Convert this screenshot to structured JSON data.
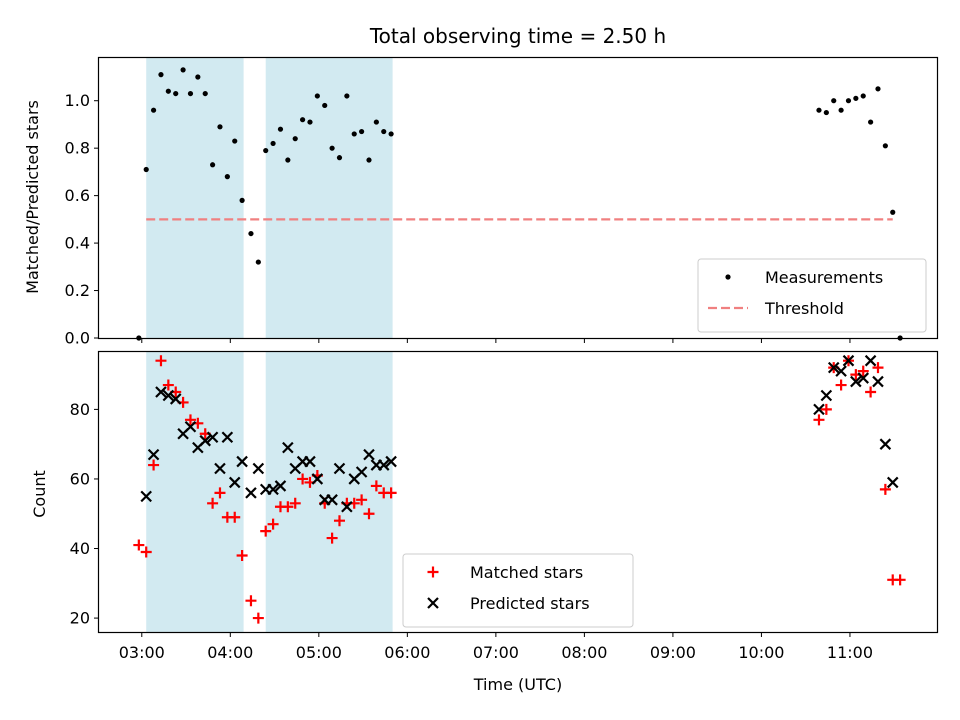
{
  "chart_data": {
    "type": "scatter",
    "title": "Total observing time = 2.50 h",
    "xlabel": "Time (UTC)",
    "x_ticks": [
      "03:00",
      "04:00",
      "05:00",
      "06:00",
      "07:00",
      "08:00",
      "09:00",
      "10:00",
      "11:00"
    ],
    "xlim": [
      "02:31",
      "11:59"
    ],
    "shaded_intervals": [
      [
        "03:03",
        "04:09"
      ],
      [
        "04:24",
        "05:50"
      ]
    ],
    "shade_color": "#add8e6",
    "panels": [
      {
        "ylabel": "Matched/Predicted stars",
        "ylim": [
          0,
          1.18
        ],
        "y_ticks": [
          "0.0",
          "0.2",
          "0.4",
          "0.6",
          "0.8",
          "1.0"
        ],
        "legend_position": "lower-right",
        "series": [
          {
            "name": "Measurements",
            "marker": "dot",
            "color": "#000000",
            "points": [
              [
                "02:58",
                0.0
              ],
              [
                "03:03",
                0.71
              ],
              [
                "03:08",
                0.96
              ],
              [
                "03:13",
                1.11
              ],
              [
                "03:18",
                1.04
              ],
              [
                "03:23",
                1.03
              ],
              [
                "03:28",
                1.13
              ],
              [
                "03:33",
                1.03
              ],
              [
                "03:38",
                1.1
              ],
              [
                "03:43",
                1.03
              ],
              [
                "03:48",
                0.73
              ],
              [
                "03:53",
                0.89
              ],
              [
                "03:58",
                0.68
              ],
              [
                "04:03",
                0.83
              ],
              [
                "04:08",
                0.58
              ],
              [
                "04:14",
                0.44
              ],
              [
                "04:19",
                0.32
              ],
              [
                "04:24",
                0.79
              ],
              [
                "04:29",
                0.82
              ],
              [
                "04:34",
                0.88
              ],
              [
                "04:39",
                0.75
              ],
              [
                "04:44",
                0.84
              ],
              [
                "04:49",
                0.92
              ],
              [
                "04:54",
                0.91
              ],
              [
                "04:59",
                1.02
              ],
              [
                "05:04",
                0.98
              ],
              [
                "05:09",
                0.8
              ],
              [
                "05:14",
                0.76
              ],
              [
                "05:19",
                1.02
              ],
              [
                "05:24",
                0.86
              ],
              [
                "05:29",
                0.87
              ],
              [
                "05:34",
                0.75
              ],
              [
                "05:39",
                0.91
              ],
              [
                "05:44",
                0.87
              ],
              [
                "05:49",
                0.86
              ],
              [
                "10:39",
                0.96
              ],
              [
                "10:44",
                0.95
              ],
              [
                "10:49",
                1.0
              ],
              [
                "10:54",
                0.96
              ],
              [
                "10:59",
                1.0
              ],
              [
                "11:04",
                1.01
              ],
              [
                "11:09",
                1.02
              ],
              [
                "11:14",
                0.91
              ],
              [
                "11:19",
                1.05
              ],
              [
                "11:24",
                0.81
              ],
              [
                "11:29",
                0.53
              ],
              [
                "11:34",
                0.0
              ]
            ]
          },
          {
            "name": "Threshold",
            "marker": "dashed-line",
            "color": "#f08080",
            "x_range": [
              "03:03",
              "11:29"
            ],
            "value": 0.5
          }
        ]
      },
      {
        "ylabel": "Count",
        "ylim": [
          16,
          96.5
        ],
        "y_ticks": [
          "20",
          "40",
          "60",
          "80"
        ],
        "legend_position": "lower-center",
        "series": [
          {
            "name": "Matched stars",
            "marker": "plus",
            "color": "#ff0000",
            "points": [
              [
                "02:58",
                41
              ],
              [
                "03:03",
                39
              ],
              [
                "03:08",
                64
              ],
              [
                "03:13",
                94
              ],
              [
                "03:18",
                87
              ],
              [
                "03:23",
                85
              ],
              [
                "03:28",
                82
              ],
              [
                "03:33",
                77
              ],
              [
                "03:38",
                76
              ],
              [
                "03:43",
                73
              ],
              [
                "03:48",
                53
              ],
              [
                "03:53",
                56
              ],
              [
                "03:58",
                49
              ],
              [
                "04:03",
                49
              ],
              [
                "04:08",
                38
              ],
              [
                "04:14",
                25
              ],
              [
                "04:19",
                20
              ],
              [
                "04:24",
                45
              ],
              [
                "04:29",
                47
              ],
              [
                "04:34",
                52
              ],
              [
                "04:39",
                52
              ],
              [
                "04:44",
                53
              ],
              [
                "04:49",
                60
              ],
              [
                "04:54",
                59
              ],
              [
                "04:59",
                61
              ],
              [
                "05:04",
                53
              ],
              [
                "05:09",
                43
              ],
              [
                "05:14",
                48
              ],
              [
                "05:19",
                53
              ],
              [
                "05:24",
                53
              ],
              [
                "05:29",
                54
              ],
              [
                "05:34",
                50
              ],
              [
                "05:39",
                58
              ],
              [
                "05:44",
                56
              ],
              [
                "05:49",
                56
              ],
              [
                "10:39",
                77
              ],
              [
                "10:44",
                80
              ],
              [
                "10:49",
                92
              ],
              [
                "10:54",
                87
              ],
              [
                "10:59",
                94
              ],
              [
                "11:04",
                90
              ],
              [
                "11:09",
                91
              ],
              [
                "11:14",
                85
              ],
              [
                "11:19",
                92
              ],
              [
                "11:24",
                57
              ],
              [
                "11:29",
                31
              ],
              [
                "11:34",
                31
              ]
            ]
          },
          {
            "name": "Predicted stars",
            "marker": "x",
            "color": "#000000",
            "points": [
              [
                "03:03",
                55
              ],
              [
                "03:08",
                67
              ],
              [
                "03:13",
                85
              ],
              [
                "03:18",
                84
              ],
              [
                "03:23",
                83
              ],
              [
                "03:28",
                73
              ],
              [
                "03:33",
                75
              ],
              [
                "03:38",
                69
              ],
              [
                "03:43",
                71
              ],
              [
                "03:48",
                72
              ],
              [
                "03:53",
                63
              ],
              [
                "03:58",
                72
              ],
              [
                "04:03",
                59
              ],
              [
                "04:08",
                65
              ],
              [
                "04:14",
                56
              ],
              [
                "04:19",
                63
              ],
              [
                "04:24",
                57
              ],
              [
                "04:29",
                57
              ],
              [
                "04:34",
                58
              ],
              [
                "04:39",
                69
              ],
              [
                "04:44",
                63
              ],
              [
                "04:49",
                65
              ],
              [
                "04:54",
                65
              ],
              [
                "04:59",
                60
              ],
              [
                "05:04",
                54
              ],
              [
                "05:09",
                54
              ],
              [
                "05:14",
                63
              ],
              [
                "05:19",
                52
              ],
              [
                "05:24",
                60
              ],
              [
                "05:29",
                62
              ],
              [
                "05:34",
                67
              ],
              [
                "05:39",
                64
              ],
              [
                "05:44",
                64
              ],
              [
                "05:49",
                65
              ],
              [
                "10:39",
                80
              ],
              [
                "10:44",
                84
              ],
              [
                "10:49",
                92
              ],
              [
                "10:54",
                91
              ],
              [
                "10:59",
                94
              ],
              [
                "11:04",
                88
              ],
              [
                "11:09",
                89
              ],
              [
                "11:14",
                94
              ],
              [
                "11:19",
                88
              ],
              [
                "11:24",
                70
              ],
              [
                "11:29",
                59
              ]
            ]
          }
        ]
      }
    ]
  }
}
